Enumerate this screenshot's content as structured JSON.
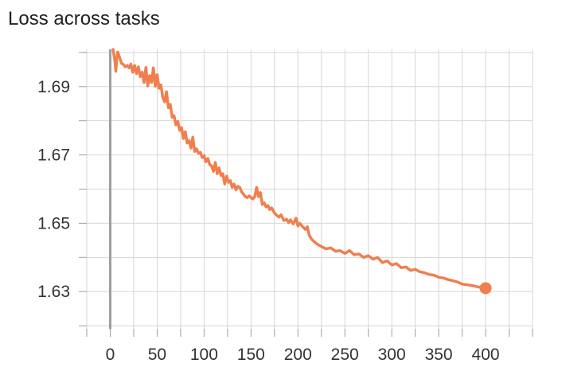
{
  "chart_data": {
    "type": "line",
    "title": "Loss across tasks",
    "xlabel": "",
    "ylabel": "",
    "xlim": [
      -25,
      450
    ],
    "ylim": [
      1.6191,
      1.7009
    ],
    "x_ticks": [
      0,
      50,
      100,
      150,
      200,
      250,
      300,
      350,
      400
    ],
    "x_tick_labels": [
      "0",
      "50",
      "100",
      "150",
      "200",
      "250",
      "300",
      "350",
      "400"
    ],
    "x_minor_ticks": [
      -25,
      25,
      75,
      125,
      175,
      225,
      275,
      325,
      375,
      425,
      450
    ],
    "y_ticks": [
      1.63,
      1.65,
      1.67,
      1.69
    ],
    "y_tick_labels": [
      "1.63",
      "1.65",
      "1.67",
      "1.69"
    ],
    "y_minor_ticks": [
      1.62,
      1.64,
      1.66,
      1.68,
      1.7
    ],
    "grid": true,
    "legend": "none",
    "series": [
      {
        "color": "#f07f4f",
        "x": [
          3,
          5,
          6,
          7,
          8,
          10,
          12,
          14,
          16,
          18,
          20,
          22,
          24,
          26,
          28,
          30,
          32,
          34,
          36,
          38,
          40,
          42,
          44,
          46,
          48,
          50,
          52,
          54,
          56,
          58,
          60,
          62,
          64,
          66,
          68,
          70,
          72,
          74,
          76,
          78,
          80,
          82,
          84,
          86,
          88,
          90,
          92,
          94,
          96,
          98,
          100,
          102,
          104,
          106,
          108,
          110,
          112,
          114,
          116,
          118,
          120,
          122,
          124,
          126,
          128,
          130,
          132,
          134,
          136,
          138,
          140,
          142,
          144,
          146,
          148,
          150,
          152,
          154,
          156,
          158,
          160,
          162,
          164,
          166,
          168,
          170,
          172,
          175,
          178,
          180,
          182,
          185,
          188,
          190,
          192,
          195,
          198,
          200,
          202,
          205,
          208,
          210,
          212,
          215,
          220,
          225,
          230,
          235,
          240,
          245,
          250,
          255,
          260,
          265,
          270,
          275,
          280,
          285,
          290,
          295,
          300,
          305,
          310,
          315,
          320,
          325,
          330,
          335,
          340,
          345,
          350,
          355,
          360,
          365,
          370,
          375,
          380,
          385,
          390,
          395,
          400
        ],
        "y": [
          1.7009,
          1.6975,
          1.6945,
          1.6982,
          1.7001,
          1.6985,
          1.6968,
          1.6965,
          1.6958,
          1.6962,
          1.6955,
          1.6966,
          1.6942,
          1.6962,
          1.6938,
          1.6958,
          1.6929,
          1.6942,
          1.6912,
          1.6956,
          1.6902,
          1.6932,
          1.6912,
          1.6955,
          1.6901,
          1.6935,
          1.6895,
          1.6905,
          1.6868,
          1.6855,
          1.6885,
          1.6838,
          1.6848,
          1.681,
          1.6815,
          1.6788,
          1.6798,
          1.6772,
          1.678,
          1.6748,
          1.6768,
          1.6735,
          1.6742,
          1.672,
          1.6752,
          1.671,
          1.6718,
          1.6705,
          1.6708,
          1.6692,
          1.6698,
          1.668,
          1.669,
          1.6672,
          1.6668,
          1.6652,
          1.6678,
          1.6645,
          1.6662,
          1.664,
          1.6645,
          1.6615,
          1.6638,
          1.662,
          1.6625,
          1.6605,
          1.6615,
          1.6598,
          1.6608,
          1.6605,
          1.6592,
          1.6585,
          1.6578,
          1.6575,
          1.658,
          1.6575,
          1.6571,
          1.6578,
          1.6605,
          1.6578,
          1.659,
          1.6555,
          1.656,
          1.6548,
          1.6552,
          1.654,
          1.6545,
          1.653,
          1.6522,
          1.6518,
          1.6525,
          1.6508,
          1.6512,
          1.6502,
          1.651,
          1.6498,
          1.6515,
          1.6492,
          1.65,
          1.649,
          1.6482,
          1.649,
          1.6465,
          1.6452,
          1.644,
          1.6432,
          1.6425,
          1.6428,
          1.6418,
          1.642,
          1.6412,
          1.642,
          1.6408,
          1.641,
          1.64,
          1.6405,
          1.6395,
          1.64,
          1.6385,
          1.639,
          1.6378,
          1.6382,
          1.637,
          1.6372,
          1.6362,
          1.6365,
          1.6358,
          1.6355,
          1.635,
          1.6348,
          1.6342,
          1.634,
          1.6335,
          1.6332,
          1.6328,
          1.6322,
          1.632,
          1.6318,
          1.6315,
          1.6312,
          1.631
        ]
      }
    ]
  }
}
